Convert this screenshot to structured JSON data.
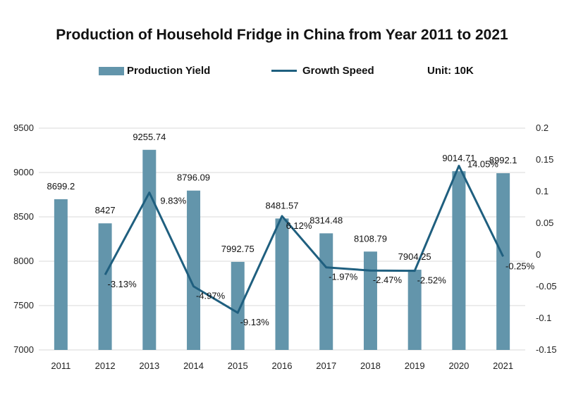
{
  "chart_data": {
    "type": "bar+line",
    "title": "Production of Household Fridge in China from Year 2011 to 2021",
    "categories": [
      "2011",
      "2012",
      "2013",
      "2014",
      "2015",
      "2016",
      "2017",
      "2018",
      "2019",
      "2020",
      "2021"
    ],
    "series": [
      {
        "name": "Production Yield",
        "type": "bar",
        "axis": "left",
        "values": [
          8699.2,
          8427,
          9255.74,
          8796.09,
          7992.75,
          8481.57,
          8314.48,
          8108.79,
          7904.25,
          9014.71,
          8992.1
        ],
        "labels": [
          "8699.2",
          "8427",
          "9255.74",
          "8796.09",
          "7992.75",
          "8481.57",
          "8314.48",
          "8108.79",
          "7904.25",
          "9014.71",
          "8992.1"
        ]
      },
      {
        "name": "Growth Speed",
        "type": "line",
        "axis": "right",
        "values": [
          null,
          -0.0313,
          0.0983,
          -0.0497,
          -0.0913,
          0.0612,
          -0.0197,
          -0.0247,
          -0.0252,
          0.1405,
          -0.0025
        ],
        "labels": [
          "",
          "-3.13%",
          "9.83%",
          "-4.97%",
          "-9.13%",
          "6.12%",
          "-1.97%",
          "-2.47%",
          "-2.52%",
          "14.05%",
          "-0.25%"
        ]
      }
    ],
    "unit_label": "Unit: 10K",
    "y_left": {
      "min": 7000,
      "max": 9500,
      "ticks": [
        "9500",
        "9000",
        "8500",
        "8000",
        "7500",
        "7000"
      ]
    },
    "y_right": {
      "min": -0.15,
      "max": 0.2,
      "ticks": [
        "0.2",
        "0.15",
        "0.1",
        "0.05",
        "0",
        "-0.05",
        "-0.1",
        "-0.15"
      ]
    },
    "grid": "horizontal",
    "legend_position": "top",
    "colors": {
      "bar": "#6395ab",
      "line": "#1f5f7f",
      "grid": "#d9d9d9"
    }
  }
}
